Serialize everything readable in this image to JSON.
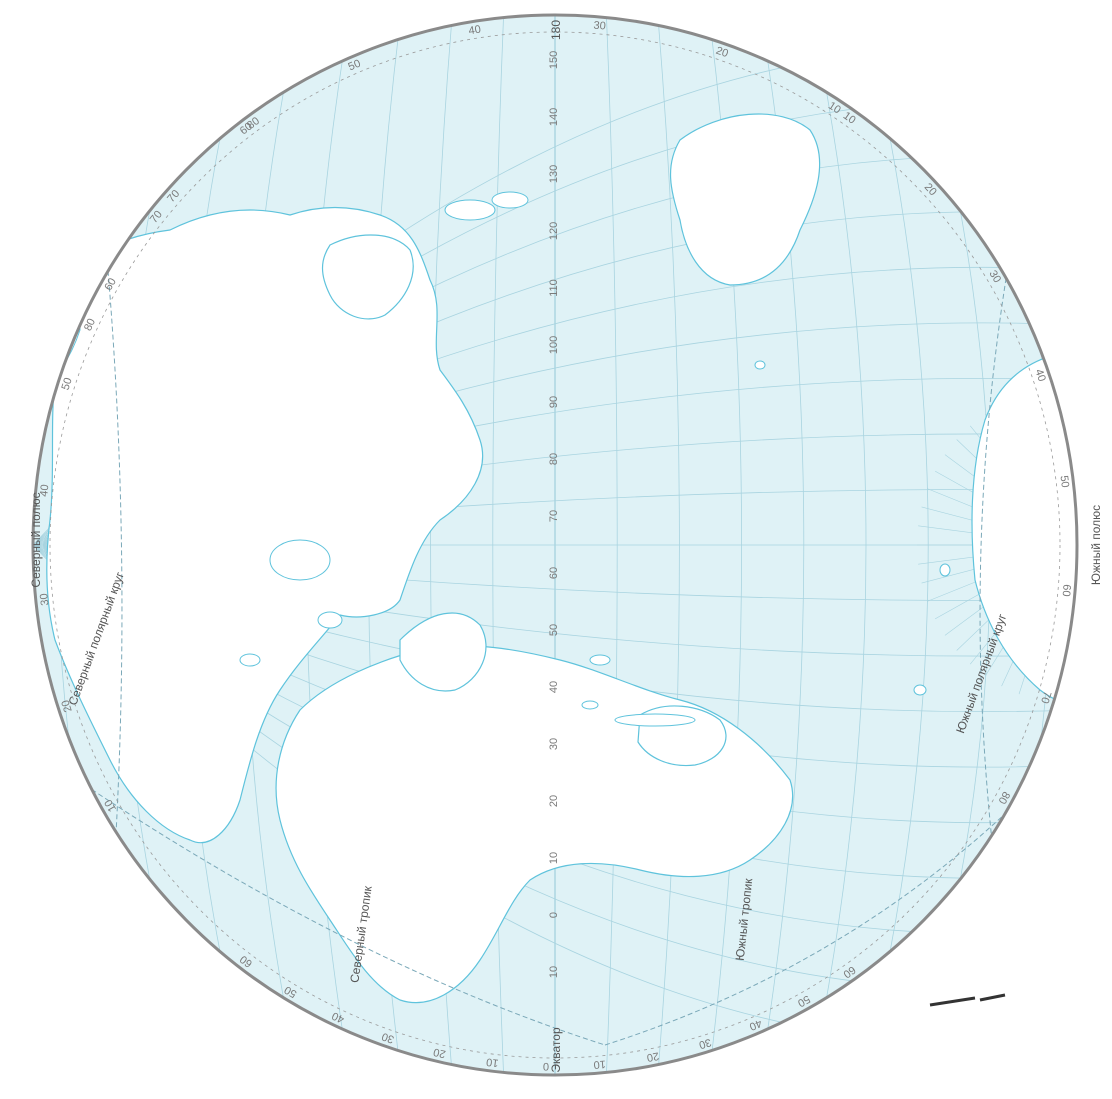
{
  "map": {
    "ocean_color": "#dff2f6",
    "land_color": "#ffffff",
    "coast_color": "#5fc3dc",
    "grid_color": "#a9d4e0",
    "rim_color": "#8a8a8a",
    "labels": {
      "north_pole": "Северный полюс",
      "south_pole": "Южный полюс",
      "arctic_circle": "Северный полярный круг",
      "antarctic_circle": "Южный полярный круг",
      "tropic_north": "Северный тропик",
      "tropic_south": "Южный тропик",
      "equator": "Экватор",
      "meridian_180": "180"
    },
    "meridian_labels": [
      "150",
      "140",
      "130",
      "120",
      "110",
      "100",
      "90",
      "80",
      "70",
      "60",
      "50",
      "40",
      "30",
      "20",
      "10",
      "0",
      "10"
    ],
    "rim_labels_top": [
      "80",
      "70",
      "60",
      "50",
      "40",
      "30",
      "20",
      "10"
    ],
    "rim_labels_right": [
      "10",
      "20",
      "30",
      "40",
      "50",
      "60",
      "70",
      "80"
    ],
    "rim_labels_left": [
      "10",
      "20",
      "30",
      "40",
      "50",
      "60",
      "70",
      "80"
    ],
    "rim_labels_bottom": [
      "60",
      "50",
      "40",
      "30",
      "20",
      "10",
      "0",
      "10",
      "20",
      "30",
      "40",
      "50",
      "60"
    ]
  }
}
